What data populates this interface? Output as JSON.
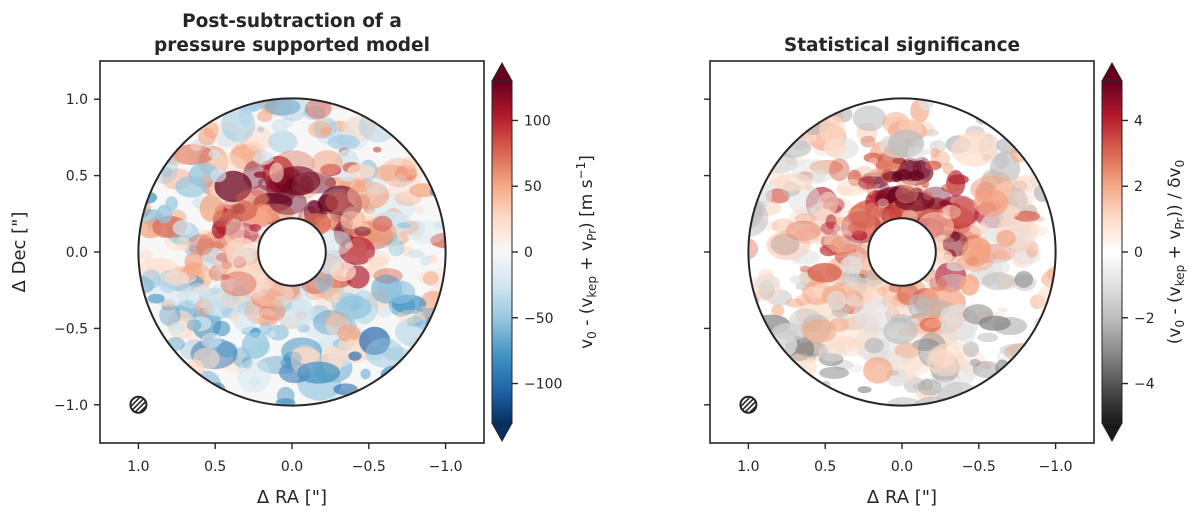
{
  "chart_data": [
    {
      "type": "heatmap",
      "title_lines": [
        "Post-subtraction of a",
        "pressure supported model"
      ],
      "xlabel": "Δ RA [\"]",
      "ylabel": "Δ Dec [\"]",
      "xlim": [
        1.25,
        -1.25
      ],
      "ylim": [
        -1.25,
        1.25
      ],
      "xticks": [
        1.0,
        0.5,
        0.0,
        -0.5,
        -1.0
      ],
      "xtick_labels": [
        "1.0",
        "0.5",
        "0.0",
        "−0.5",
        "−1.0"
      ],
      "yticks": [
        1.0,
        0.5,
        0.0,
        -0.5,
        -1.0
      ],
      "ytick_labels": [
        "1.0",
        "0.5",
        "0.0",
        "−0.5",
        "−1.0"
      ],
      "annulus": {
        "inner_radius": 0.22,
        "outer_radius": 1.0
      },
      "colormap": "RdBu_r",
      "colormap_colors": [
        "#053061",
        "#2166ac",
        "#4393c3",
        "#92c5de",
        "#d1e5f0",
        "#f7f7f7",
        "#fddbc7",
        "#f4a582",
        "#d6604d",
        "#b2182b",
        "#67001f"
      ],
      "colorbar": {
        "range": [
          -130,
          130
        ],
        "ticks": [
          100,
          50,
          0,
          -50,
          -100
        ],
        "tick_labels": [
          "100",
          "50",
          "0",
          "−50",
          "−100"
        ],
        "label_parts": [
          "v",
          "0",
          " - (v",
          "kep",
          " + v",
          "Pr",
          ") [m s",
          "−1",
          "]"
        ],
        "extend": "both"
      },
      "beam": {
        "x": 1.0,
        "y": -1.0
      },
      "grid": false
    },
    {
      "type": "heatmap",
      "title_lines": [
        "Statistical significance"
      ],
      "xlabel": "Δ RA [\"]",
      "ylabel": "",
      "xlim": [
        1.25,
        -1.25
      ],
      "ylim": [
        -1.25,
        1.25
      ],
      "xticks": [
        1.0,
        0.5,
        0.0,
        -0.5,
        -1.0
      ],
      "xtick_labels": [
        "1.0",
        "0.5",
        "0.0",
        "−0.5",
        "−1.0"
      ],
      "yticks": [
        1.0,
        0.5,
        0.0,
        -0.5,
        -1.0
      ],
      "annulus": {
        "inner_radius": 0.22,
        "outer_radius": 1.0
      },
      "colormap": "RdGy_r",
      "colormap_colors": [
        "#1a1a1a",
        "#4d4d4d",
        "#878787",
        "#bababa",
        "#e0e0e0",
        "#ffffff",
        "#fddbc7",
        "#f4a582",
        "#d6604d",
        "#b2182b",
        "#67001f"
      ],
      "colorbar": {
        "range": [
          -5.2,
          5.2
        ],
        "ticks": [
          4,
          2,
          0,
          -2,
          -4
        ],
        "tick_labels": [
          "4",
          "2",
          "0",
          "−2",
          "−4"
        ],
        "label_parts": [
          "(v",
          "0",
          " - (v",
          "kep",
          " + v",
          "Pr",
          ")) / δv",
          "0"
        ],
        "extend": "both"
      },
      "beam": {
        "x": 1.0,
        "y": -1.0
      },
      "grid": false
    }
  ]
}
